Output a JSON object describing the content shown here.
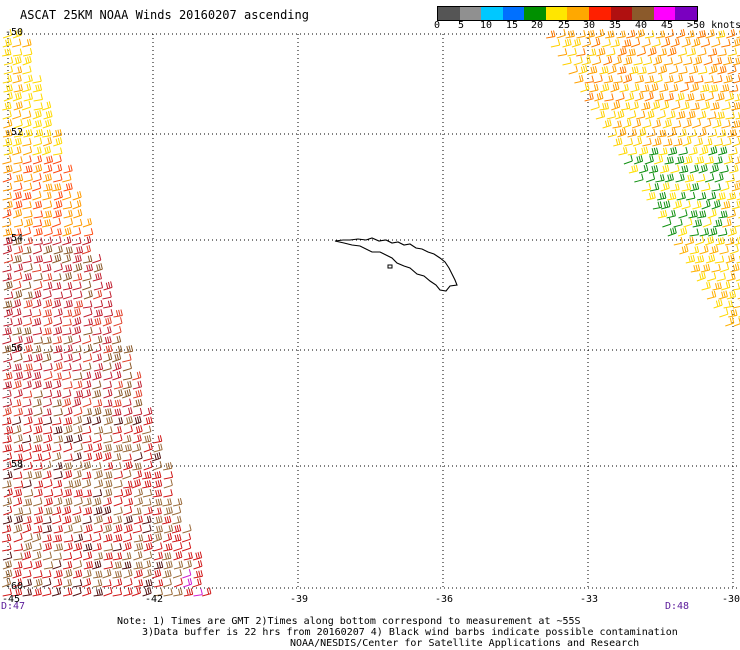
{
  "title": "ASCAT 25KM NOAA Winds 20160207 ascending",
  "colorbar": {
    "labels": [
      "0",
      "5",
      "10",
      "15",
      "20",
      "25",
      "30",
      "35",
      "40",
      "45",
      ">50 knots"
    ],
    "colors": [
      "#555555",
      "#909090",
      "#00c8ff",
      "#0070ff",
      "#009000",
      "#ffe600",
      "#ffa800",
      "#ff2000",
      "#b01010",
      "#8b5a2b",
      "#ff00ff",
      "#7a00c0"
    ]
  },
  "axes": {
    "lat_labels": [
      "-50",
      "-52",
      "-54",
      "-56",
      "-58",
      "-60"
    ],
    "lon_labels": [
      "-45",
      "-42",
      "-39",
      "-36",
      "-33",
      "-30"
    ]
  },
  "swath_times": {
    "left": "D:47",
    "right": "D:48"
  },
  "notes": {
    "line1": "Note: 1) Times are GMT 2)Times along bottom correspond to measurement at ~55S",
    "line2": "3)Data buffer is 22 hrs from 20160207 4) Black wind barbs indicate possible contamination",
    "line3": "NOAA/NESDIS/Center for Satellite Applications and Research"
  }
}
